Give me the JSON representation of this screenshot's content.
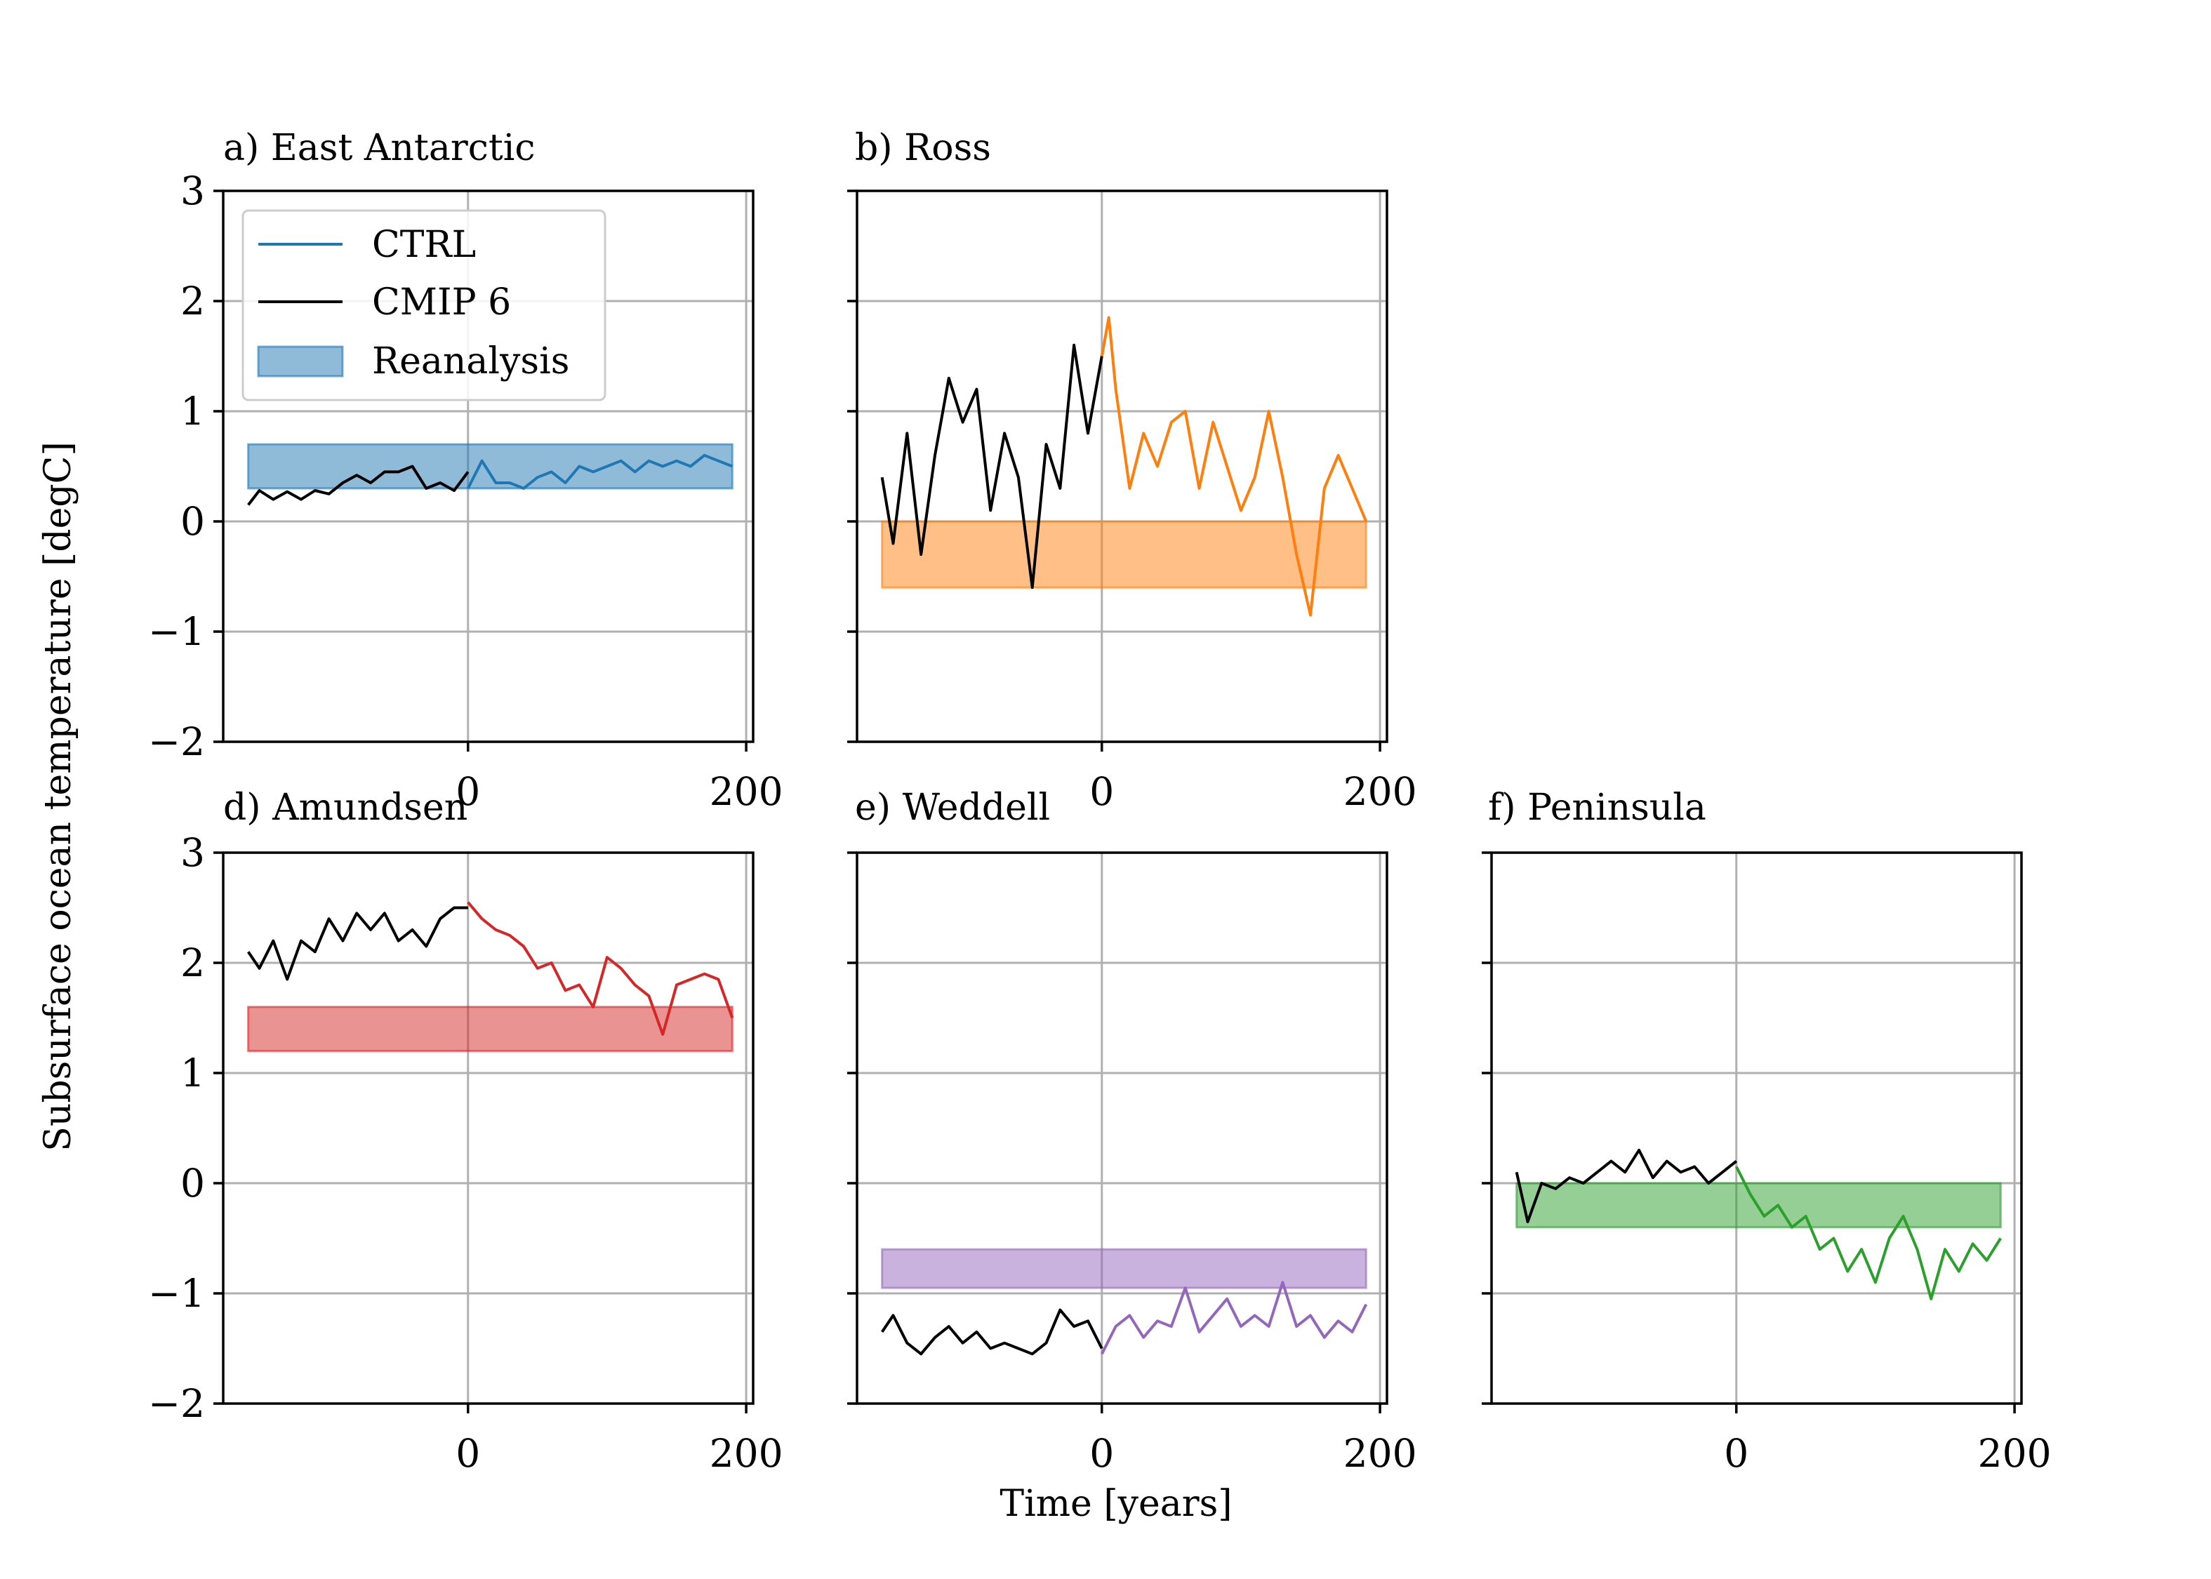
{
  "figure": {
    "ylabel": "Subsurface ocean temperature [degC]",
    "xlabel": "Time [years]"
  },
  "legend": {
    "placement": "upper-left of panel a",
    "entries": [
      {
        "label": "CTRL",
        "kind": "line",
        "color": "#1f77b4"
      },
      {
        "label": "CMIP 6",
        "kind": "line",
        "color": "#000000"
      },
      {
        "label": "Reanalysis",
        "kind": "patch",
        "color": "#1f77b4"
      }
    ]
  },
  "chart_data": [
    {
      "type": "line",
      "panel": "a",
      "title": "a) East Antarctic",
      "color": "#1f77b4",
      "xlim": [
        -176,
        205
      ],
      "ylim": [
        -2,
        3
      ],
      "xticks": [
        0,
        200
      ],
      "yticks": [
        3,
        2,
        1,
        0,
        -1,
        -2
      ],
      "grid": true,
      "reanalysis_band": [
        0.3,
        0.7
      ],
      "band_x": [
        -158,
        190
      ],
      "series": [
        {
          "name": "CMIP 6",
          "color": "#000000",
          "x": [
            -158,
            -150,
            -140,
            -130,
            -120,
            -110,
            -100,
            -90,
            -80,
            -70,
            -60,
            -50,
            -40,
            -30,
            -20,
            -10,
            0
          ],
          "y": [
            0.15,
            0.28,
            0.2,
            0.27,
            0.2,
            0.28,
            0.25,
            0.35,
            0.42,
            0.35,
            0.45,
            0.45,
            0.5,
            0.3,
            0.35,
            0.28,
            0.45
          ]
        },
        {
          "name": "CTRL",
          "color": "#1f77b4",
          "x": [
            0,
            10,
            20,
            30,
            40,
            50,
            60,
            70,
            80,
            90,
            100,
            110,
            120,
            130,
            140,
            150,
            160,
            170,
            180,
            190
          ],
          "y": [
            0.3,
            0.55,
            0.35,
            0.35,
            0.3,
            0.4,
            0.45,
            0.35,
            0.5,
            0.45,
            0.5,
            0.55,
            0.45,
            0.55,
            0.5,
            0.55,
            0.5,
            0.6,
            0.55,
            0.5
          ]
        }
      ]
    },
    {
      "type": "line",
      "panel": "b",
      "title": "b) Ross",
      "color": "#ff7f0e",
      "xlim": [
        -176,
        205
      ],
      "ylim": [
        -2,
        3
      ],
      "xticks": [
        0,
        200
      ],
      "yticks": [
        3,
        2,
        1,
        0,
        -1,
        -2
      ],
      "grid": true,
      "reanalysis_band": [
        -0.6,
        0.0
      ],
      "band_x": [
        -158,
        190
      ],
      "series": [
        {
          "name": "CMIP 6",
          "color": "#000000",
          "x": [
            -158,
            -150,
            -140,
            -130,
            -120,
            -110,
            -100,
            -90,
            -80,
            -70,
            -60,
            -50,
            -40,
            -30,
            -20,
            -10,
            0
          ],
          "y": [
            0.4,
            -0.2,
            0.8,
            -0.3,
            0.6,
            1.3,
            0.9,
            1.2,
            0.1,
            0.8,
            0.4,
            -0.6,
            0.7,
            0.3,
            1.6,
            0.8,
            1.5
          ]
        },
        {
          "name": "CTRL",
          "color": "#ff7f0e",
          "x": [
            0,
            5,
            10,
            20,
            30,
            40,
            50,
            60,
            70,
            80,
            90,
            100,
            110,
            120,
            130,
            140,
            150,
            160,
            170,
            180,
            190
          ],
          "y": [
            1.5,
            1.85,
            1.2,
            0.3,
            0.8,
            0.5,
            0.9,
            1.0,
            0.3,
            0.9,
            0.5,
            0.1,
            0.4,
            1.0,
            0.4,
            -0.3,
            -0.85,
            0.3,
            0.6,
            0.3,
            0.0
          ]
        }
      ]
    },
    {
      "type": "line",
      "panel": "d",
      "title": "d) Amundsen",
      "color": "#d62728",
      "xlim": [
        -176,
        205
      ],
      "ylim": [
        -2,
        3
      ],
      "xticks": [
        0,
        200
      ],
      "yticks": [
        3,
        2,
        1,
        0,
        -1,
        -2
      ],
      "grid": true,
      "reanalysis_band": [
        1.2,
        1.6
      ],
      "band_x": [
        -158,
        190
      ],
      "series": [
        {
          "name": "CMIP 6",
          "color": "#000000",
          "x": [
            -158,
            -150,
            -140,
            -130,
            -120,
            -110,
            -100,
            -90,
            -80,
            -70,
            -60,
            -50,
            -40,
            -30,
            -20,
            -10,
            0
          ],
          "y": [
            2.1,
            1.95,
            2.2,
            1.85,
            2.2,
            2.1,
            2.4,
            2.2,
            2.45,
            2.3,
            2.45,
            2.2,
            2.3,
            2.15,
            2.4,
            2.5,
            2.5
          ]
        },
        {
          "name": "CTRL",
          "color": "#d62728",
          "x": [
            0,
            10,
            20,
            30,
            40,
            50,
            60,
            70,
            80,
            90,
            100,
            110,
            120,
            130,
            140,
            150,
            160,
            170,
            180,
            190
          ],
          "y": [
            2.55,
            2.4,
            2.3,
            2.25,
            2.15,
            1.95,
            2.0,
            1.75,
            1.8,
            1.6,
            2.05,
            1.95,
            1.8,
            1.7,
            1.35,
            1.8,
            1.85,
            1.9,
            1.85,
            1.5
          ]
        }
      ]
    },
    {
      "type": "line",
      "panel": "e",
      "title": "e) Weddell",
      "color": "#9467bd",
      "xlim": [
        -176,
        205
      ],
      "ylim": [
        -2,
        3
      ],
      "xticks": [
        0,
        200
      ],
      "yticks": [
        3,
        2,
        1,
        0,
        -1,
        -2
      ],
      "grid": true,
      "reanalysis_band": [
        -0.95,
        -0.6
      ],
      "band_x": [
        -158,
        190
      ],
      "series": [
        {
          "name": "CMIP 6",
          "color": "#000000",
          "x": [
            -158,
            -150,
            -140,
            -130,
            -120,
            -110,
            -100,
            -90,
            -80,
            -70,
            -60,
            -50,
            -40,
            -30,
            -20,
            -10,
            0
          ],
          "y": [
            -1.35,
            -1.2,
            -1.45,
            -1.55,
            -1.4,
            -1.3,
            -1.45,
            -1.35,
            -1.5,
            -1.45,
            -1.5,
            -1.55,
            -1.45,
            -1.15,
            -1.3,
            -1.25,
            -1.5
          ]
        },
        {
          "name": "CTRL",
          "color": "#9467bd",
          "x": [
            0,
            10,
            20,
            30,
            40,
            50,
            60,
            70,
            80,
            90,
            100,
            110,
            120,
            130,
            140,
            150,
            160,
            170,
            180,
            190
          ],
          "y": [
            -1.55,
            -1.3,
            -1.2,
            -1.4,
            -1.25,
            -1.3,
            -0.95,
            -1.35,
            -1.2,
            -1.05,
            -1.3,
            -1.2,
            -1.3,
            -0.9,
            -1.3,
            -1.2,
            -1.4,
            -1.25,
            -1.35,
            -1.1
          ]
        }
      ]
    },
    {
      "type": "line",
      "panel": "f",
      "title": "f) Peninsula",
      "color": "#2ca02c",
      "xlim": [
        -176,
        205
      ],
      "ylim": [
        -2,
        3
      ],
      "xticks": [
        0,
        200
      ],
      "yticks": [
        3,
        2,
        1,
        0,
        -1,
        -2
      ],
      "grid": true,
      "reanalysis_band": [
        -0.4,
        0.0
      ],
      "band_x": [
        -158,
        190
      ],
      "series": [
        {
          "name": "CMIP 6",
          "color": "#000000",
          "x": [
            -158,
            -150,
            -140,
            -130,
            -120,
            -110,
            -100,
            -90,
            -80,
            -70,
            -60,
            -50,
            -40,
            -30,
            -20,
            -10,
            0
          ],
          "y": [
            0.1,
            -0.35,
            0.0,
            -0.05,
            0.05,
            0.0,
            0.1,
            0.2,
            0.1,
            0.3,
            0.05,
            0.2,
            0.1,
            0.15,
            0.0,
            0.1,
            0.2
          ]
        },
        {
          "name": "CTRL",
          "color": "#2ca02c",
          "x": [
            0,
            10,
            20,
            30,
            40,
            50,
            60,
            70,
            80,
            90,
            100,
            110,
            120,
            130,
            140,
            150,
            160,
            170,
            180,
            190
          ],
          "y": [
            0.15,
            -0.1,
            -0.3,
            -0.2,
            -0.4,
            -0.3,
            -0.6,
            -0.5,
            -0.8,
            -0.6,
            -0.9,
            -0.5,
            -0.3,
            -0.6,
            -1.05,
            -0.6,
            -0.8,
            -0.55,
            -0.7,
            -0.5
          ]
        }
      ]
    }
  ]
}
